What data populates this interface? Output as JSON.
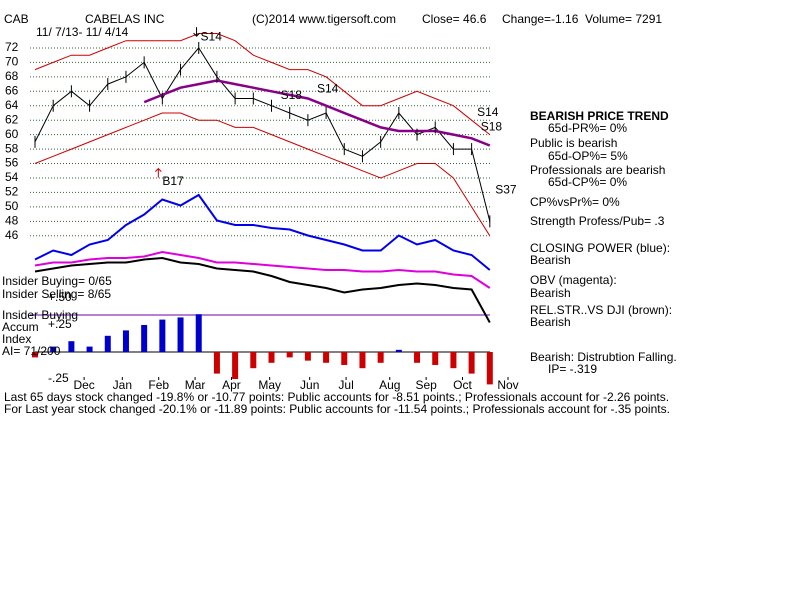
{
  "header": {
    "ticker": "CAB",
    "company": "CABELAS INC",
    "date_range": "11/ 7/13- 11/ 4/14",
    "copyright": "(C)2014 www.tigersoft.com",
    "close": "Close=  46.6",
    "change": "Change=-1.16",
    "volume": "Volume= 7291"
  },
  "chart_data": {
    "type": "line",
    "x": [
      0,
      10,
      20,
      30,
      40,
      50,
      60,
      70,
      80,
      90,
      100,
      110,
      120,
      130,
      140,
      150,
      160,
      170,
      180,
      190,
      200,
      210,
      220,
      230,
      240,
      250
    ],
    "xlim": [
      0,
      260
    ],
    "xticks": [
      {
        "value": 27,
        "label": "Dec"
      },
      {
        "value": 48,
        "label": "Jan"
      },
      {
        "value": 68,
        "label": "Feb"
      },
      {
        "value": 88,
        "label": "Mar"
      },
      {
        "value": 108,
        "label": "Apr"
      },
      {
        "value": 129,
        "label": "May"
      },
      {
        "value": 151,
        "label": "Jun"
      },
      {
        "value": 171,
        "label": "Jul"
      },
      {
        "value": 195,
        "label": "Aug"
      },
      {
        "value": 215,
        "label": "Sep"
      },
      {
        "value": 235,
        "label": "Oct"
      },
      {
        "value": 260,
        "label": "Nov"
      }
    ],
    "ylim": [
      45,
      74
    ],
    "yticks": [
      46,
      48,
      50,
      52,
      54,
      56,
      58,
      60,
      62,
      64,
      66,
      68,
      70,
      72
    ],
    "grid": true,
    "series": [
      {
        "name": "Price",
        "color": "#000000",
        "values": [
          59,
          64,
          66,
          64,
          67,
          68,
          70,
          65,
          69,
          72,
          68,
          65,
          65,
          64,
          63,
          62,
          63,
          58,
          57,
          59,
          63,
          60,
          61,
          58,
          58,
          48
        ]
      },
      {
        "name": "Upper band",
        "color": "#cc0000",
        "values": [
          69,
          70,
          71,
          71,
          72,
          73,
          73,
          73,
          73,
          74,
          74,
          73,
          71,
          70,
          69,
          69,
          68,
          66,
          64,
          64,
          65,
          66,
          65,
          64,
          62,
          60
        ]
      },
      {
        "name": "Lower band",
        "color": "#cc0000",
        "values": [
          56,
          57,
          58,
          59,
          60,
          61,
          62,
          63,
          63,
          62,
          62,
          61,
          61,
          60,
          59,
          58,
          57,
          56,
          55,
          54,
          55,
          56,
          56,
          54,
          50,
          46
        ]
      },
      {
        "name": "Moving average",
        "color": "#880088",
        "values": [
          null,
          null,
          null,
          null,
          null,
          null,
          64.5,
          65.5,
          66.5,
          67,
          67.5,
          67,
          66.5,
          66,
          65.5,
          65,
          64,
          63,
          62,
          61,
          60.5,
          60.5,
          60.5,
          60,
          59.5,
          58.5
        ]
      }
    ],
    "annotations": [
      {
        "text": "S14",
        "x": 91,
        "y": 73.5,
        "arrow": "down"
      },
      {
        "text": "B17",
        "x": 70,
        "y": 53.5,
        "arrow": "up"
      },
      {
        "text": "S18",
        "x": 135,
        "y": 65.4
      },
      {
        "text": "S14",
        "x": 155,
        "y": 66.3
      },
      {
        "text": "S14",
        "x": 243,
        "y": 63
      },
      {
        "text": "S18",
        "x": 245,
        "y": 61
      },
      {
        "text": "S37",
        "x": 253,
        "y": 52.3
      }
    ],
    "indicators": {
      "ylim": [
        0,
        100
      ],
      "series": [
        {
          "name": "Closing Power",
          "color": "#0000ee",
          "values": [
            47,
            53,
            50,
            57,
            60,
            70,
            77,
            87,
            83,
            90,
            73,
            70,
            70,
            68,
            67,
            63,
            60,
            57,
            53,
            53,
            63,
            57,
            60,
            53,
            50,
            40
          ]
        },
        {
          "name": "OBV",
          "color": "#dd00dd",
          "values": [
            43,
            45,
            45,
            47,
            48,
            48,
            49,
            52,
            50,
            48,
            45,
            45,
            44,
            43,
            42,
            41,
            40,
            40,
            39,
            39,
            40,
            39,
            39,
            37,
            36,
            28
          ]
        },
        {
          "name": "Rel Str",
          "color": "#000000",
          "values": [
            39,
            41,
            43,
            44,
            45,
            45,
            47,
            48,
            45,
            44,
            41,
            40,
            39,
            36,
            32,
            30,
            28,
            25,
            27,
            28,
            30,
            31,
            30,
            28,
            27,
            5
          ]
        }
      ]
    },
    "accum": {
      "ylim": [
        -0.3,
        0.55
      ],
      "yticks": [
        {
          "value": 0.5,
          "label": "+.50"
        },
        {
          "value": 0.25,
          "label": "+.25"
        },
        {
          "value": -0.25,
          "label": "-.25"
        }
      ],
      "positive_color": "#0000cc",
      "negative_color": "#cc0000",
      "values": [
        -0.05,
        0.05,
        0.1,
        0.05,
        0.15,
        0.2,
        0.25,
        0.3,
        0.32,
        0.35,
        -0.2,
        -0.25,
        -0.15,
        -0.1,
        -0.05,
        -0.08,
        -0.1,
        -0.12,
        -0.15,
        -0.1,
        0.02,
        -0.1,
        -0.12,
        -0.15,
        -0.2,
        -0.3
      ]
    }
  },
  "left_labels": [
    "Insider Buying= 0/65",
    "Insider Selling= 8/65",
    "Insider Buying",
    "Accum",
    "Index",
    "AI= 71/200"
  ],
  "right_panel": [
    "BEARISH PRICE TREND",
    "65d-PR%= 0%",
    "Public is bearish",
    "65d-OP%= 5%",
    "Professionals are bearish",
    "65d-CP%= 0%",
    "CP%vsPr%=  0%",
    "Strength Profess/Pub= .3",
    "CLOSING POWER (blue):",
    "Bearish",
    "OBV (magenta):",
    "Bearish",
    "REL.STR..VS DJI (brown):",
    "Bearish",
    "Bearish: Distrubtion Falling.",
    "IP= -.319"
  ],
  "footer": [
    "Last 65 days stock changed -19.8% or -10.77 points:  Public accounts for -8.51 points.;  Professionals account for -2.26 points.",
    "For Last year stock changed -20.1% or -11.89 points:  Public accounts for -11.54 points.;  Professionals account for -.35 points."
  ]
}
